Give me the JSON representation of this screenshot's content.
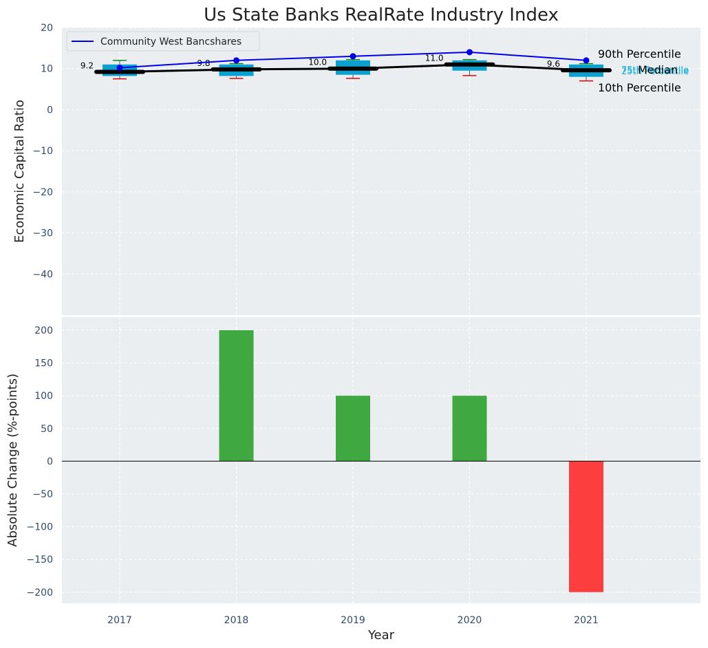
{
  "chart_data": [
    {
      "type": "box",
      "title": "Us State Banks RealRate Industry Index",
      "ylabel": "Economic Capital Ratio",
      "ylim": [
        -50,
        20
      ],
      "yticks": [
        20,
        10,
        0,
        -10,
        -20,
        -30,
        -40
      ],
      "categories": [
        "2017",
        "2018",
        "2019",
        "2020",
        "2021"
      ],
      "grid": true,
      "legend_position": "top-left",
      "percentiles": {
        "p10": [
          7.5,
          7.6,
          7.6,
          8.3,
          7.0
        ],
        "p25": [
          8.2,
          8.2,
          8.5,
          9.5,
          8.0
        ],
        "median": [
          9.2,
          9.8,
          10.0,
          11.0,
          9.6
        ],
        "p75": [
          11.0,
          11.0,
          12.0,
          12.0,
          11.0
        ],
        "p90": [
          12.0,
          11.2,
          12.2,
          12.2,
          11.2
        ]
      },
      "median_labels": [
        "9.2",
        "9.8",
        "10.0",
        "11.0",
        "9.6"
      ],
      "series": [
        {
          "name": "Community West Bancshares",
          "values": [
            10.2,
            12.0,
            13.0,
            14.0,
            12.0
          ],
          "color": "#0000e6"
        }
      ],
      "annotations": {
        "p90": "90th Percentile",
        "p75": "75th Percentile",
        "median": "Median",
        "p25": "25th Percentile",
        "p10": "10th Percentile"
      },
      "colors": {
        "box": "#0aa0d0",
        "median": "#000000",
        "p90_whisker": "#0a8a0a",
        "p10_whisker": "#e00000"
      }
    },
    {
      "type": "bar",
      "xlabel": "Year",
      "ylabel": "Absolute Change (%-points)",
      "ylim": [
        -217,
        220
      ],
      "yticks": [
        200,
        150,
        100,
        50,
        0,
        -50,
        -100,
        -150,
        -200
      ],
      "categories": [
        "2018",
        "2019",
        "2020",
        "2021"
      ],
      "values": [
        200,
        100,
        100,
        -200
      ],
      "grid": true,
      "colors": {
        "positive": "#2ca02c",
        "negative": "#ff2a2a"
      }
    }
  ]
}
